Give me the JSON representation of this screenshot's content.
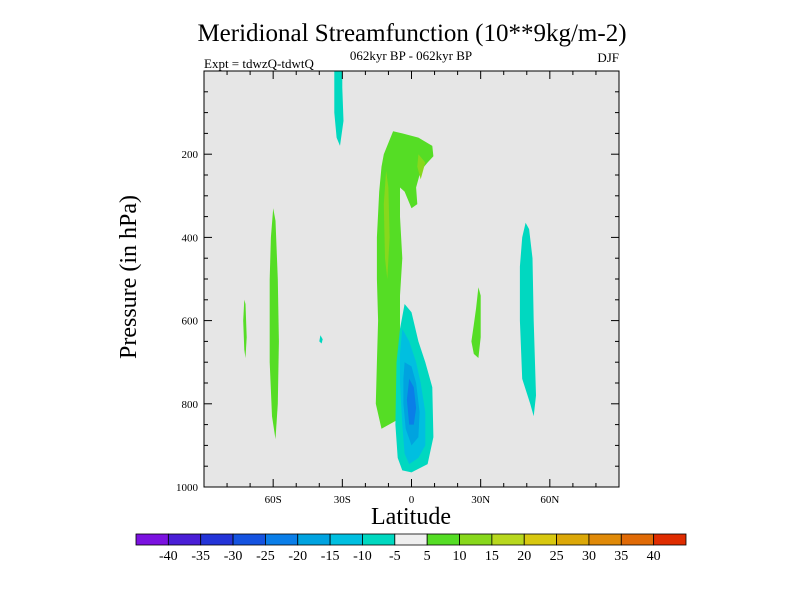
{
  "chart_data": {
    "type": "contour",
    "title": "Meridional Streamfunction (10**9kg/m-2)",
    "subtitle_center": "062kyr BP - 062kyr BP",
    "subtitle_left": "Expt = tdwzQ-tdwtQ",
    "subtitle_right": "DJF",
    "xlabel": "Latitude",
    "ylabel": "Pressure (in hPa)",
    "xlim": [
      -90,
      90
    ],
    "ylim": [
      0,
      1000
    ],
    "y_inverted": true,
    "x_ticks": [
      {
        "value": -60,
        "label": "60S"
      },
      {
        "value": -30,
        "label": "30S"
      },
      {
        "value": 0,
        "label": "0"
      },
      {
        "value": 30,
        "label": "30N"
      },
      {
        "value": 60,
        "label": "60N"
      }
    ],
    "y_ticks": [
      {
        "value": 200,
        "label": "200"
      },
      {
        "value": 400,
        "label": "400"
      },
      {
        "value": 600,
        "label": "600"
      },
      {
        "value": 800,
        "label": "800"
      },
      {
        "value": 1000,
        "label": "1000"
      }
    ],
    "background_color": "#e6e6e6",
    "colorbar": {
      "levels": [
        -40,
        -35,
        -30,
        -25,
        -20,
        -15,
        -10,
        -5,
        5,
        10,
        15,
        20,
        25,
        30,
        35,
        40
      ],
      "colors": [
        "#7b12e0",
        "#4a1ed6",
        "#2434d8",
        "#1553e0",
        "#0a7ee8",
        "#00a3e0",
        "#00bfe0",
        "#00d8c0",
        "#efefef",
        "#55dd25",
        "#88d81c",
        "#b8d81e",
        "#d8c810",
        "#dca808",
        "#e08a08",
        "#e06a06",
        "#df2c00"
      ]
    },
    "regions": [
      {
        "name": "nh-upper-cell-teal",
        "color": "#00d8c0",
        "points": [
          [
            -33.5,
            0
          ],
          [
            -30,
            0
          ],
          [
            -30,
            40
          ],
          [
            -29.5,
            120
          ],
          [
            -31,
            180
          ],
          [
            -32.5,
            160
          ],
          [
            -33.5,
            100
          ]
        ]
      },
      {
        "name": "sh-small-green-60",
        "color": "#55dd25",
        "points": [
          [
            -72.5,
            550
          ],
          [
            -72,
            560
          ],
          [
            -71.5,
            640
          ],
          [
            -72,
            690
          ],
          [
            -72.5,
            670
          ],
          [
            -73,
            600
          ]
        ]
      },
      {
        "name": "sh-tall-green-55",
        "color": "#55dd25",
        "points": [
          [
            -60,
            330
          ],
          [
            -59,
            360
          ],
          [
            -58,
            500
          ],
          [
            -57.5,
            650
          ],
          [
            -58,
            800
          ],
          [
            -59,
            885
          ],
          [
            -60.5,
            830
          ],
          [
            -61.5,
            700
          ],
          [
            -61.5,
            500
          ],
          [
            -61,
            400
          ]
        ]
      },
      {
        "name": "tiny-teal-dot",
        "color": "#00d8c0",
        "points": [
          [
            -39.5,
            635
          ],
          [
            -38.5,
            645
          ],
          [
            -39,
            655
          ],
          [
            -40,
            650
          ]
        ]
      },
      {
        "name": "equatorial-green-cell",
        "color": "#55dd25",
        "points": [
          [
            -8,
            145
          ],
          [
            -4,
            150
          ],
          [
            3,
            160
          ],
          [
            9,
            180
          ],
          [
            9.5,
            205
          ],
          [
            7,
            220
          ],
          [
            4,
            240
          ],
          [
            2,
            280
          ],
          [
            2.5,
            320
          ],
          [
            0,
            330
          ],
          [
            -3,
            290
          ],
          [
            -5,
            280
          ],
          [
            -5,
            350
          ],
          [
            -4,
            450
          ],
          [
            -5,
            540
          ],
          [
            -5,
            650
          ],
          [
            -6,
            750
          ],
          [
            -6.5,
            840
          ],
          [
            -13,
            860
          ],
          [
            -15.5,
            800
          ],
          [
            -15,
            700
          ],
          [
            -14.5,
            600
          ],
          [
            -15,
            500
          ],
          [
            -15,
            400
          ],
          [
            -14,
            290
          ],
          [
            -13,
            230
          ],
          [
            -12,
            200
          ]
        ]
      },
      {
        "name": "equatorial-yellow-lobe-low",
        "color": "#88d81c",
        "points": [
          [
            -11,
            240
          ],
          [
            -10,
            280
          ],
          [
            -9.5,
            400
          ],
          [
            -10.5,
            500
          ],
          [
            -11.5,
            450
          ],
          [
            -12,
            320
          ]
        ]
      },
      {
        "name": "equatorial-yellow-lobe-high",
        "color": "#88d81c",
        "points": [
          [
            3,
            200
          ],
          [
            6,
            220
          ],
          [
            4,
            260
          ],
          [
            2.5,
            230
          ]
        ]
      },
      {
        "name": "lower-southward-cell-teal",
        "color": "#00d8c0",
        "points": [
          [
            -3,
            560
          ],
          [
            0,
            580
          ],
          [
            3,
            650
          ],
          [
            6,
            700
          ],
          [
            9,
            760
          ],
          [
            9.5,
            880
          ],
          [
            7,
            945
          ],
          [
            0,
            965
          ],
          [
            -4,
            960
          ],
          [
            -6,
            930
          ],
          [
            -7,
            850
          ],
          [
            -6.5,
            700
          ],
          [
            -5,
            620
          ]
        ]
      },
      {
        "name": "lower-southward-cell-cyan",
        "color": "#00bfe0",
        "points": [
          [
            -4,
            620
          ],
          [
            -1,
            650
          ],
          [
            2,
            700
          ],
          [
            4,
            750
          ],
          [
            6,
            820
          ],
          [
            6,
            900
          ],
          [
            3,
            930
          ],
          [
            -1,
            945
          ],
          [
            -3,
            920
          ],
          [
            -4,
            850
          ],
          [
            -5,
            750
          ],
          [
            -5,
            680
          ]
        ]
      },
      {
        "name": "lower-southward-cell-blue",
        "color": "#00a3e0",
        "points": [
          [
            -3,
            700
          ],
          [
            0,
            710
          ],
          [
            2,
            750
          ],
          [
            3.5,
            820
          ],
          [
            3,
            880
          ],
          [
            0,
            900
          ],
          [
            -2.5,
            860
          ],
          [
            -3.5,
            800
          ],
          [
            -3.5,
            740
          ]
        ]
      },
      {
        "name": "lower-southward-cell-core",
        "color": "#0a7ee8",
        "points": [
          [
            -1,
            740
          ],
          [
            1,
            760
          ],
          [
            2,
            810
          ],
          [
            1,
            850
          ],
          [
            -1,
            850
          ],
          [
            -2,
            790
          ]
        ]
      },
      {
        "name": "green-30n-patch",
        "color": "#55dd25",
        "points": [
          [
            29,
            520
          ],
          [
            30,
            540
          ],
          [
            30,
            640
          ],
          [
            29,
            690
          ],
          [
            27,
            680
          ],
          [
            26,
            650
          ],
          [
            27,
            610
          ],
          [
            28,
            570
          ]
        ]
      },
      {
        "name": "teal-55n-cell",
        "color": "#00d8c0",
        "points": [
          [
            49.5,
            365
          ],
          [
            51,
            380
          ],
          [
            52.5,
            450
          ],
          [
            53,
            600
          ],
          [
            54,
            780
          ],
          [
            53,
            830
          ],
          [
            51.5,
            800
          ],
          [
            48,
            740
          ],
          [
            47,
            600
          ],
          [
            47,
            470
          ],
          [
            48,
            400
          ]
        ]
      }
    ]
  }
}
